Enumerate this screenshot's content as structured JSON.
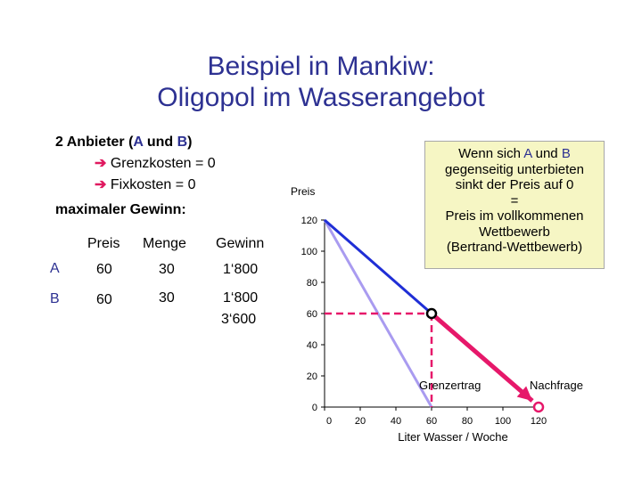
{
  "title": {
    "line1": "Beispiel in Mankiw:",
    "line2": "Oligopol im Wasserangebot"
  },
  "intro": {
    "line1_prefix": "2 Anbieter (",
    "line1_a": "A",
    "line1_mid": " und ",
    "line1_b": "B",
    "line1_suffix": ")",
    "arrow_glyph": "➔",
    "grenzkosten": "Grenzkosten = 0",
    "fixkosten": "Fixkosten = 0",
    "max_gewinn": "maximaler Gewinn:"
  },
  "table": {
    "headers": [
      "Preis",
      "Menge",
      "Gewinn"
    ],
    "rows": [
      {
        "label": "A",
        "preis": "60",
        "menge": "30",
        "gewinn": "1‘800"
      },
      {
        "label": "B",
        "preis": "60",
        "menge": "30",
        "gewinn": "1‘800"
      }
    ],
    "total": "3‘600"
  },
  "callout": {
    "line1_prefix": "Wenn sich ",
    "line1_a": "A",
    "line1_mid": " und ",
    "line1_b": "B",
    "line2": "gegenseitig unterbieten",
    "line3": "sinkt der Preis auf 0",
    "line4": "=",
    "line5": "Preis im vollkommenen",
    "line6": "Wettbewerb",
    "line7": "(Bertrand-Wettbewerb)"
  },
  "chart_data": {
    "type": "line",
    "ylabel": "Preis",
    "xlabel": "Liter Wasser / Woche",
    "x_ticks": [
      "0",
      "20",
      "40",
      "60",
      "80",
      "100",
      "120"
    ],
    "y_ticks": [
      "0",
      "20",
      "40",
      "60",
      "80",
      "100",
      "120"
    ],
    "xlim": [
      0,
      120
    ],
    "ylim": [
      0,
      120
    ],
    "series": [
      {
        "name": "Nachfrage",
        "x": [
          0,
          120
        ],
        "y": [
          120,
          0
        ]
      },
      {
        "name": "Grenzertrag",
        "x": [
          0,
          60
        ],
        "y": [
          120,
          0
        ]
      }
    ],
    "point": {
      "x": 60,
      "y": 60
    },
    "end_point": {
      "x": 120,
      "y": 0
    },
    "colors": {
      "demand_upper": "#1f2ed6",
      "demand_lower": "#e6186a",
      "marginal_revenue": "#a99bf0",
      "guide": "#e6186a"
    }
  }
}
